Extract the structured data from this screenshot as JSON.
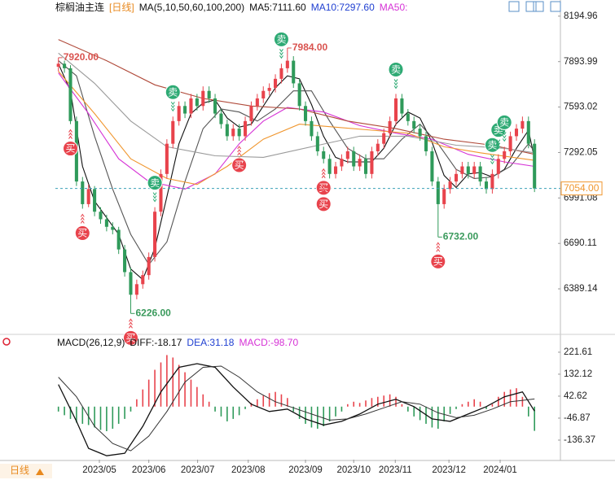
{
  "chart_data": [
    {
      "type": "candlestick",
      "title": "棕榈油主连",
      "subtitle": "[日线]",
      "indicator": "MA(5,10,50,60,100,200)",
      "xlim": [
        -0.5,
        83.3
      ],
      "ylim": [
        6093,
        8275
      ],
      "yticks": [
        8194.96,
        7893.99,
        7593.02,
        7292.05,
        6991.08,
        6690.11,
        6389.14
      ],
      "up_color": "#e8434c",
      "down_color": "#2f9a5a",
      "ohlc": [
        [
          7860,
          7920,
          7830,
          7880
        ],
        [
          7880,
          7900,
          7820,
          7850
        ],
        [
          7850,
          7870,
          7480,
          7500
        ],
        [
          7500,
          7530,
          7070,
          7100
        ],
        [
          7100,
          7130,
          6920,
          6950
        ],
        [
          6950,
          7080,
          6930,
          7050
        ],
        [
          7050,
          7070,
          6870,
          6900
        ],
        [
          6900,
          6930,
          6820,
          6850
        ],
        [
          6850,
          6880,
          6770,
          6800
        ],
        [
          6800,
          6830,
          6750,
          6780
        ],
        [
          6780,
          6800,
          6620,
          6650
        ],
        [
          6650,
          6680,
          6470,
          6500
        ],
        [
          6500,
          6530,
          6226,
          6350
        ],
        [
          6350,
          6450,
          6320,
          6420
        ],
        [
          6420,
          6510,
          6390,
          6480
        ],
        [
          6480,
          6630,
          6450,
          6600
        ],
        [
          6600,
          6930,
          6570,
          6900
        ],
        [
          6900,
          7180,
          6870,
          7150
        ],
        [
          7150,
          7380,
          7120,
          7350
        ],
        [
          7350,
          7530,
          7320,
          7500
        ],
        [
          7500,
          7630,
          7470,
          7600
        ],
        [
          7600,
          7630,
          7520,
          7550
        ],
        [
          7550,
          7680,
          7520,
          7650
        ],
        [
          7650,
          7680,
          7570,
          7600
        ],
        [
          7600,
          7730,
          7570,
          7700
        ],
        [
          7700,
          7730,
          7620,
          7650
        ],
        [
          7650,
          7680,
          7520,
          7550
        ],
        [
          7550,
          7580,
          7450,
          7480
        ],
        [
          7480,
          7510,
          7370,
          7400
        ],
        [
          7400,
          7480,
          7370,
          7450
        ],
        [
          7450,
          7480,
          7370,
          7400
        ],
        [
          7400,
          7530,
          7370,
          7500
        ],
        [
          7500,
          7630,
          7470,
          7600
        ],
        [
          7600,
          7680,
          7570,
          7650
        ],
        [
          7650,
          7730,
          7620,
          7700
        ],
        [
          7700,
          7750,
          7670,
          7720
        ],
        [
          7720,
          7810,
          7690,
          7780
        ],
        [
          7780,
          7880,
          7750,
          7850
        ],
        [
          7850,
          7984,
          7820,
          7900
        ],
        [
          7900,
          7930,
          7720,
          7750
        ],
        [
          7750,
          7780,
          7570,
          7600
        ],
        [
          7600,
          7630,
          7470,
          7500
        ],
        [
          7500,
          7530,
          7370,
          7400
        ],
        [
          7400,
          7430,
          7270,
          7300
        ],
        [
          7300,
          7330,
          7220,
          7250
        ],
        [
          7250,
          7280,
          7120,
          7150
        ],
        [
          7150,
          7230,
          7120,
          7200
        ],
        [
          7200,
          7280,
          7170,
          7250
        ],
        [
          7250,
          7330,
          7220,
          7300
        ],
        [
          7300,
          7330,
          7170,
          7200
        ],
        [
          7200,
          7280,
          7170,
          7250
        ],
        [
          7250,
          7280,
          7120,
          7150
        ],
        [
          7150,
          7330,
          7120,
          7300
        ],
        [
          7300,
          7380,
          7270,
          7350
        ],
        [
          7350,
          7450,
          7320,
          7420
        ],
        [
          7420,
          7530,
          7390,
          7500
        ],
        [
          7500,
          7680,
          7470,
          7650
        ],
        [
          7650,
          7680,
          7520,
          7550
        ],
        [
          7550,
          7580,
          7470,
          7500
        ],
        [
          7500,
          7530,
          7420,
          7450
        ],
        [
          7450,
          7480,
          7370,
          7400
        ],
        [
          7400,
          7430,
          7270,
          7300
        ],
        [
          7300,
          7330,
          7070,
          7100
        ],
        [
          7100,
          7130,
          6732,
          6950
        ],
        [
          6950,
          7080,
          6920,
          7050
        ],
        [
          7050,
          7130,
          7020,
          7100
        ],
        [
          7100,
          7180,
          7070,
          7150
        ],
        [
          7150,
          7230,
          7120,
          7200
        ],
        [
          7200,
          7230,
          7120,
          7150
        ],
        [
          7150,
          7230,
          7120,
          7200
        ],
        [
          7200,
          7230,
          7070,
          7100
        ],
        [
          7100,
          7130,
          7020,
          7050
        ],
        [
          7050,
          7180,
          7020,
          7150
        ],
        [
          7150,
          7280,
          7120,
          7250
        ],
        [
          7250,
          7330,
          7220,
          7300
        ],
        [
          7300,
          7430,
          7270,
          7400
        ],
        [
          7400,
          7480,
          7370,
          7450
        ],
        [
          7450,
          7530,
          7420,
          7500
        ],
        [
          7500,
          7530,
          7320,
          7350
        ],
        [
          7350,
          7380,
          7030,
          7054
        ]
      ],
      "series": [
        {
          "name": "MA5:7111.60",
          "color": "#111111",
          "line_color": "#111111",
          "x": [
            0,
            2,
            4,
            6,
            8,
            10,
            12,
            14,
            16,
            18,
            20,
            22,
            24,
            26,
            28,
            30,
            32,
            34,
            36,
            38,
            40,
            42,
            44,
            46,
            48,
            50,
            52,
            54,
            56,
            58,
            60,
            62,
            64,
            66,
            68,
            70,
            72,
            74,
            76,
            78,
            79
          ],
          "values": [
            7880,
            7700,
            7200,
            6970,
            6860,
            6750,
            6520,
            6450,
            6660,
            7000,
            7350,
            7550,
            7620,
            7640,
            7520,
            7460,
            7480,
            7600,
            7720,
            7800,
            7780,
            7610,
            7400,
            7260,
            7230,
            7230,
            7230,
            7320,
            7480,
            7560,
            7520,
            7360,
            7140,
            7060,
            7150,
            7160,
            7130,
            7180,
            7320,
            7440,
            7250
          ]
        },
        {
          "name": "MA10:7297.60",
          "color": "#1f3fd1",
          "line_color": "#555555",
          "x": [
            0,
            3,
            6,
            9,
            12,
            15,
            18,
            21,
            24,
            27,
            30,
            33,
            36,
            39,
            42,
            45,
            48,
            51,
            54,
            57,
            60,
            63,
            66,
            69,
            72,
            75,
            78,
            79
          ],
          "values": [
            7900,
            7800,
            7400,
            7050,
            6750,
            6550,
            6700,
            7100,
            7450,
            7580,
            7560,
            7500,
            7580,
            7700,
            7700,
            7500,
            7320,
            7250,
            7250,
            7380,
            7480,
            7350,
            7180,
            7120,
            7130,
            7200,
            7350,
            7300
          ]
        },
        {
          "name": "MA50:",
          "color": "#d633d6",
          "line_color": "#d633d6",
          "x": [
            0,
            5,
            10,
            15,
            21,
            26,
            30,
            34,
            38,
            44,
            50,
            56,
            62,
            68,
            74,
            79
          ],
          "values": [
            7820,
            7550,
            7250,
            7100,
            7050,
            7150,
            7350,
            7500,
            7590,
            7560,
            7470,
            7420,
            7380,
            7280,
            7230,
            7200
          ]
        },
        {
          "line_color": "#f0962e",
          "x": [
            0,
            6,
            12,
            18,
            23,
            28,
            34,
            40,
            46,
            52,
            58,
            64,
            70,
            79
          ],
          "values": [
            7830,
            7550,
            7250,
            7120,
            7080,
            7200,
            7380,
            7480,
            7460,
            7440,
            7420,
            7330,
            7290,
            7240
          ]
        },
        {
          "line_color": "#b04a3a",
          "x": [
            0,
            8,
            16,
            24,
            32,
            40,
            48,
            56,
            64,
            72,
            79
          ],
          "values": [
            8040,
            7900,
            7740,
            7650,
            7600,
            7580,
            7500,
            7450,
            7380,
            7340,
            7280
          ]
        },
        {
          "line_color": "#9a9a9a",
          "x": [
            0,
            6,
            12,
            18,
            26,
            34,
            42,
            50,
            58,
            66,
            74,
            79
          ],
          "values": [
            7950,
            7750,
            7500,
            7330,
            7270,
            7260,
            7330,
            7400,
            7400,
            7340,
            7320,
            7290
          ]
        }
      ],
      "last_price": {
        "value": 7054,
        "label": "7054.00"
      },
      "annotations": [
        {
          "index": 0,
          "value": 7920,
          "label": "7920.00",
          "color": "#d9534f"
        },
        {
          "index": 38,
          "value": 7984,
          "label": "7984.00",
          "color": "#d9534f"
        },
        {
          "index": 12,
          "value": 6226,
          "label": "6226.00",
          "color": "#3a9a5c"
        },
        {
          "index": 63,
          "value": 6732,
          "label": "6732.00",
          "color": "#3a9a5c"
        }
      ],
      "signals": [
        {
          "index": 16,
          "label": "卖",
          "color": "#2eaa74",
          "side": "above"
        },
        {
          "index": 19,
          "label": "卖",
          "color": "#2eaa74",
          "side": "above"
        },
        {
          "index": 37,
          "label": "卖",
          "color": "#2eaa74",
          "side": "above"
        },
        {
          "index": 56,
          "label": "卖",
          "color": "#2eaa74",
          "side": "above"
        },
        {
          "index": 72,
          "label": "卖",
          "color": "#2eaa74",
          "side": "above"
        },
        {
          "index": 73,
          "label": "卖",
          "color": "#2eaa74",
          "side": "above"
        },
        {
          "index": 74,
          "label": "卖",
          "color": "#2eaa74",
          "side": "above"
        },
        {
          "index": 2,
          "label": "买",
          "color": "#e8434c",
          "side": "below"
        },
        {
          "index": 4,
          "label": "买",
          "color": "#e8434c",
          "side": "below"
        },
        {
          "index": 12,
          "label": "买",
          "color": "#e8434c",
          "side": "below"
        },
        {
          "index": 30,
          "label": "买",
          "color": "#e8434c",
          "side": "below"
        },
        {
          "index": 44,
          "label": "买",
          "color": "#e8434c",
          "side": "below"
        },
        {
          "index": 44,
          "label": "买",
          "color": "#e8434c",
          "side": "below"
        },
        {
          "index": 63,
          "label": "买",
          "color": "#e8434c",
          "side": "below"
        }
      ]
    },
    {
      "type": "macd",
      "title": "MACD(26,12,9)",
      "xlim": [
        -0.5,
        83.3
      ],
      "ylim": [
        -216,
        281
      ],
      "yticks": [
        221.61,
        132.12,
        42.62,
        -46.87,
        -136.37
      ],
      "xticks": [
        {
          "value": 6.8,
          "label": "2023/05"
        },
        {
          "value": 15,
          "label": "2023/06"
        },
        {
          "value": 23.1,
          "label": "2023/07"
        },
        {
          "value": 31.5,
          "label": "2023/08"
        },
        {
          "value": 41,
          "label": "2023/09"
        },
        {
          "value": 49,
          "label": "2023/10"
        },
        {
          "value": 55.9,
          "label": "2023/11"
        },
        {
          "value": 64.8,
          "label": "2023/12"
        },
        {
          "value": 73.3,
          "label": "2024/01"
        }
      ],
      "period": "日线",
      "up_color": "#e8434c",
      "down_color": "#2f9a5a",
      "series": [
        {
          "name": "DIFF:-18.17",
          "color": "#111111",
          "line_color": "#111111",
          "kind": "line",
          "x": [
            0,
            3,
            5,
            8,
            11,
            14,
            17,
            20,
            23,
            26,
            29,
            32,
            35,
            38,
            41,
            44,
            47,
            50,
            53,
            56,
            59,
            62,
            65,
            68,
            71,
            74,
            77,
            79
          ],
          "values": [
            90,
            -60,
            -170,
            -200,
            -190,
            -80,
            60,
            160,
            175,
            160,
            80,
            10,
            -20,
            -10,
            -50,
            -75,
            -60,
            -30,
            10,
            30,
            0,
            -50,
            -60,
            -30,
            0,
            40,
            60,
            -18.17
          ]
        },
        {
          "name": "DEA:31.18",
          "color": "#1f3fd1",
          "line_color": "#333333",
          "kind": "line",
          "x": [
            0,
            3,
            6,
            9,
            12,
            15,
            18,
            21,
            24,
            27,
            30,
            33,
            36,
            39,
            42,
            45,
            48,
            51,
            54,
            57,
            60,
            63,
            66,
            69,
            72,
            75,
            79
          ],
          "values": [
            120,
            40,
            -80,
            -150,
            -180,
            -120,
            -20,
            100,
            160,
            165,
            120,
            60,
            20,
            -5,
            -30,
            -55,
            -50,
            -30,
            -5,
            20,
            10,
            -25,
            -45,
            -35,
            -10,
            20,
            31.18
          ]
        },
        {
          "name": "MACD:-98.70",
          "color": "#d633d6",
          "kind": "histogram",
          "values": [
            -20,
            -35,
            -50,
            -65,
            -70,
            -75,
            -85,
            -95,
            -100,
            -90,
            -70,
            -50,
            -20,
            30,
            70,
            110,
            150,
            180,
            210,
            200,
            170,
            140,
            110,
            80,
            50,
            20,
            -20,
            -40,
            -60,
            -50,
            -35,
            -10,
            15,
            30,
            45,
            55,
            60,
            50,
            35,
            -20,
            -50,
            -70,
            -85,
            -90,
            -80,
            -60,
            -40,
            -20,
            10,
            20,
            15,
            25,
            35,
            40,
            45,
            50,
            40,
            10,
            -20,
            -40,
            -55,
            -70,
            -85,
            -90,
            -60,
            -30,
            -10,
            10,
            20,
            30,
            20,
            -10,
            10,
            40,
            60,
            70,
            75,
            40,
            -40,
            -98.7
          ]
        }
      ]
    }
  ]
}
